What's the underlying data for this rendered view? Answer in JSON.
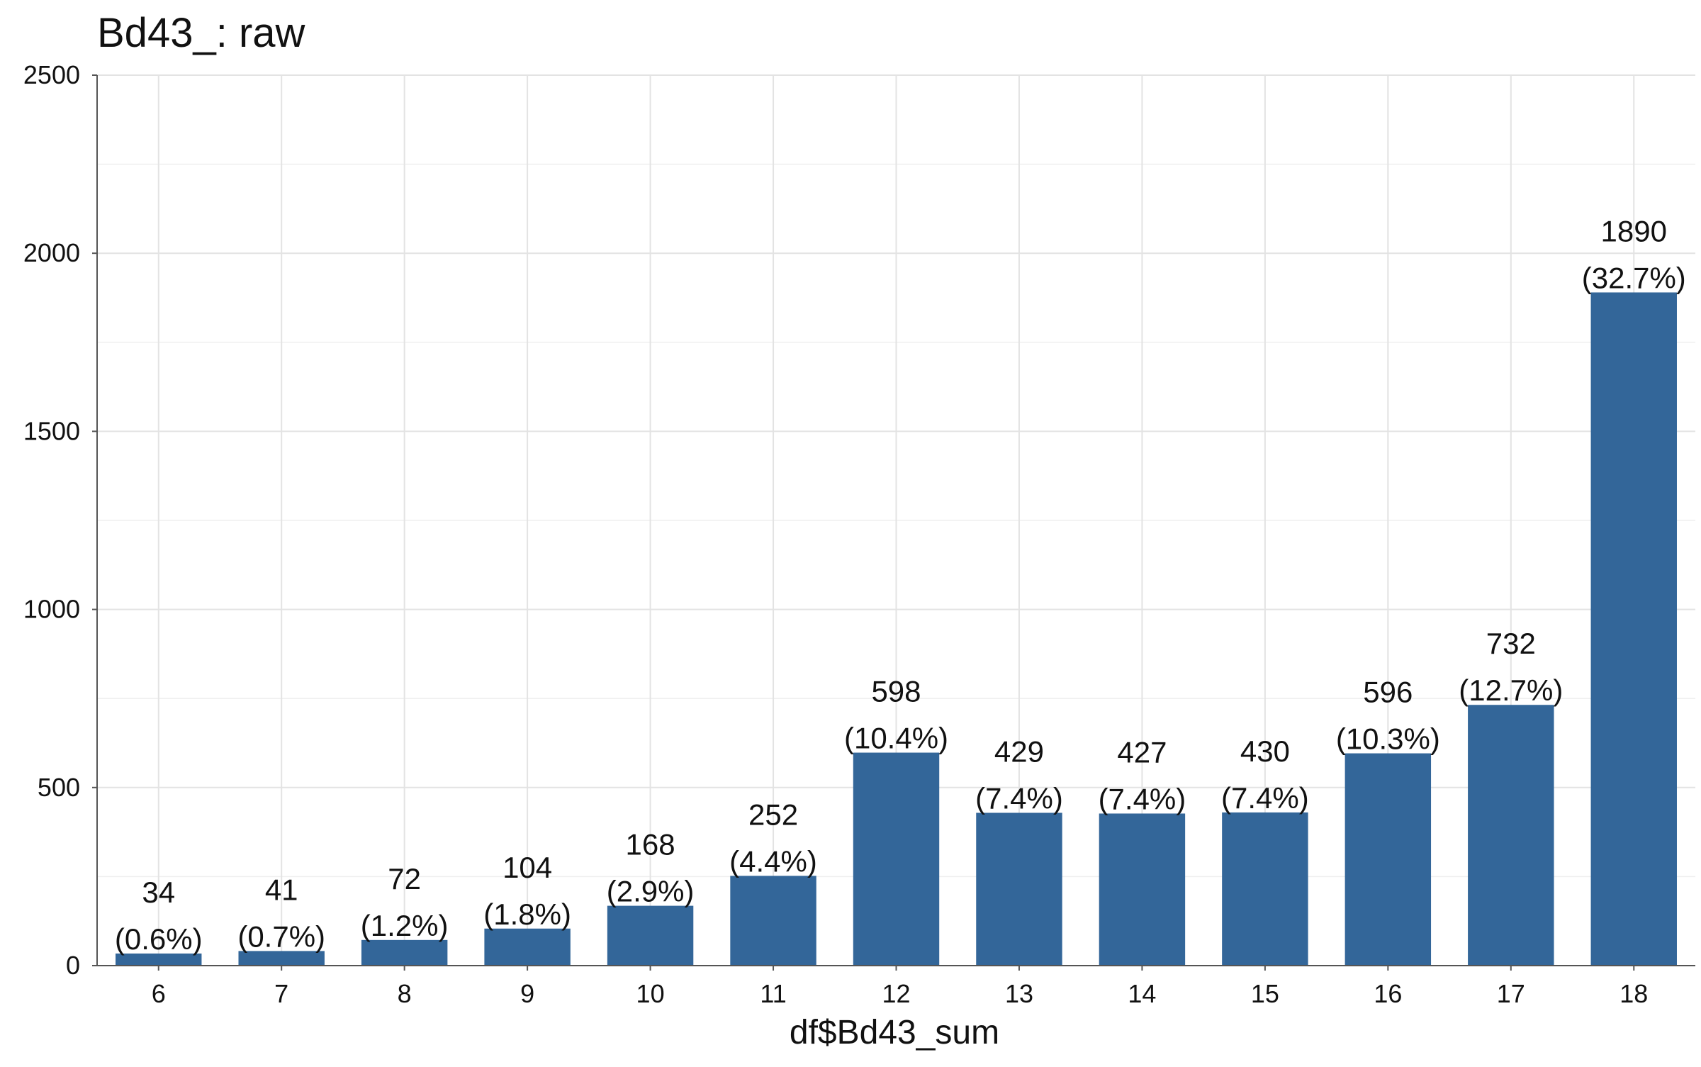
{
  "chart_data": {
    "type": "bar",
    "title": "Bd43_: raw",
    "xlabel": "df$Bd43_sum",
    "ylabel": "",
    "categories": [
      "6",
      "7",
      "8",
      "9",
      "10",
      "11",
      "12",
      "13",
      "14",
      "15",
      "16",
      "17",
      "18"
    ],
    "values": [
      34,
      41,
      72,
      104,
      168,
      252,
      598,
      429,
      427,
      430,
      596,
      732,
      1890
    ],
    "percent_labels": [
      "(0.6%)",
      "(0.7%)",
      "(1.2%)",
      "(1.8%)",
      "(2.9%)",
      "(4.4%)",
      "(10.4%)",
      "(7.4%)",
      "(7.4%)",
      "(7.4%)",
      "(10.3%)",
      "(12.7%)",
      "(32.7%)"
    ],
    "ylim": [
      0,
      2500
    ],
    "yticks": [
      0,
      500,
      1000,
      1500,
      2000,
      2500
    ],
    "grid": true,
    "legend": "none",
    "bar_color": "#336699"
  }
}
